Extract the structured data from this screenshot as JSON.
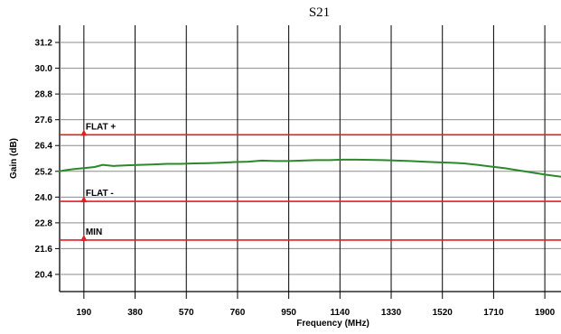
{
  "chart_data": {
    "type": "line",
    "title": "S21",
    "xlabel": "Frequency (MHz)",
    "ylabel": "Gain (dB)",
    "xlim": [
      100,
      1960
    ],
    "ylim": [
      19.6,
      32.0
    ],
    "x_ticks": [
      190,
      380,
      570,
      760,
      950,
      1140,
      1330,
      1520,
      1710,
      1900
    ],
    "y_ticks": [
      20.4,
      21.6,
      22.8,
      24.0,
      25.2,
      26.4,
      27.6,
      28.8,
      30.0,
      31.2
    ],
    "x_tick_labels": [
      "190",
      "380",
      "570",
      "760",
      "950",
      "1140",
      "1330",
      "1520",
      "1710",
      "1900"
    ],
    "y_tick_labels": [
      "20.4",
      "21.6",
      "22.8",
      "24.0",
      "25.2",
      "26.4",
      "27.6",
      "28.8",
      "30.0",
      "31.2"
    ],
    "grid": true,
    "series": [
      {
        "name": "",
        "color": "#2a8a2a",
        "x": [
          100,
          120,
          150,
          190,
          230,
          260,
          300,
          350,
          400,
          450,
          500,
          550,
          600,
          650,
          700,
          750,
          800,
          850,
          900,
          950,
          1000,
          1050,
          1100,
          1150,
          1200,
          1250,
          1300,
          1350,
          1400,
          1450,
          1500,
          1550,
          1600,
          1650,
          1700,
          1750,
          1800,
          1850,
          1900,
          1960
        ],
        "y": [
          25.2,
          25.25,
          25.3,
          25.35,
          25.4,
          25.5,
          25.45,
          25.48,
          25.5,
          25.52,
          25.55,
          25.55,
          25.57,
          25.58,
          25.6,
          25.63,
          25.65,
          25.7,
          25.68,
          25.68,
          25.7,
          25.72,
          25.72,
          25.74,
          25.74,
          25.73,
          25.72,
          25.7,
          25.68,
          25.65,
          25.62,
          25.6,
          25.57,
          25.5,
          25.42,
          25.35,
          25.25,
          25.15,
          25.05,
          24.95
        ]
      }
    ],
    "limit_lines": [
      {
        "label": "FLAT +",
        "y": 26.9,
        "color": "#e02020"
      },
      {
        "label": "FLAT -",
        "y": 23.8,
        "color": "#e02020"
      },
      {
        "label": "MIN",
        "y": 22.0,
        "color": "#e02020"
      }
    ]
  }
}
